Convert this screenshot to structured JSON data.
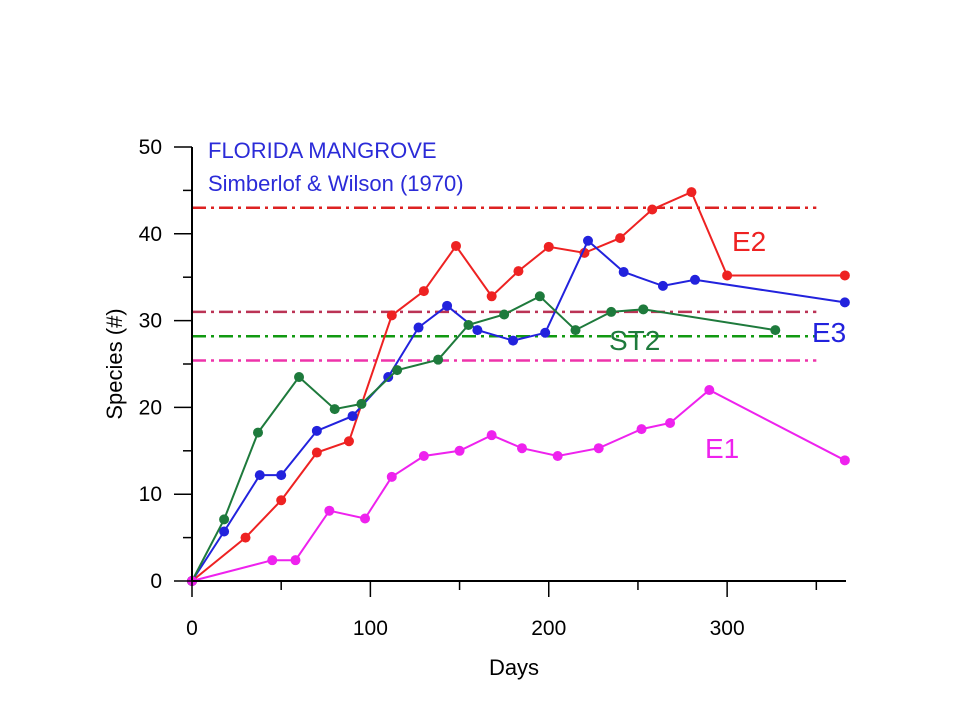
{
  "chart_data": {
    "type": "line",
    "annotation_lines": [
      "FLORIDA MANGROVE",
      "Simberlof & Wilson (1970)"
    ],
    "annotation_color": "#2b2bd8",
    "xlabel": "Days",
    "ylabel": "Species (#)",
    "xlim": [
      0,
      370
    ],
    "ylim": [
      0,
      50
    ],
    "x_ticks": [
      0,
      100,
      200,
      300
    ],
    "x_minor_ticks": [
      50,
      150,
      250,
      350
    ],
    "y_ticks": [
      0,
      10,
      20,
      30,
      40,
      50
    ],
    "y_minor_ticks": [
      5,
      15,
      25,
      35,
      45
    ],
    "grid": false,
    "series": [
      {
        "name": "E2",
        "color": "#ee2222",
        "x": [
          0,
          30,
          50,
          70,
          88,
          112,
          130,
          148,
          168,
          183,
          200,
          220,
          240,
          258,
          280,
          300,
          366
        ],
        "y": [
          0,
          5,
          9.3,
          14.8,
          16.1,
          30.6,
          33.4,
          38.6,
          32.8,
          35.7,
          38.5,
          37.8,
          39.5,
          42.8,
          44.8,
          35.2,
          35.2
        ]
      },
      {
        "name": "E3",
        "color": "#2222dd",
        "x": [
          0,
          18,
          38,
          50,
          70,
          90,
          110,
          127,
          143,
          160,
          180,
          198,
          222,
          242,
          264,
          282,
          366
        ],
        "y": [
          0,
          5.7,
          12.2,
          12.2,
          17.3,
          19,
          23.5,
          29.2,
          31.7,
          28.9,
          27.7,
          28.6,
          39.2,
          35.6,
          34,
          34.7,
          32.1
        ]
      },
      {
        "name": "ST2",
        "color": "#1e7a3c",
        "x": [
          0,
          18,
          37,
          60,
          80,
          95,
          115,
          138,
          155,
          175,
          195,
          215,
          235,
          253,
          327
        ],
        "y": [
          0,
          7.1,
          17.1,
          23.5,
          19.8,
          20.4,
          24.3,
          25.5,
          29.5,
          30.7,
          32.8,
          28.9,
          31,
          31.3,
          28.9
        ]
      },
      {
        "name": "E1",
        "color": "#ee22ee",
        "x": [
          0,
          45,
          58,
          77,
          97,
          112,
          130,
          150,
          168,
          185,
          205,
          228,
          252,
          268,
          290,
          366
        ],
        "y": [
          0,
          2.4,
          2.4,
          8.1,
          7.2,
          12,
          14.4,
          15,
          16.8,
          15.3,
          14.4,
          15.3,
          17.5,
          18.2,
          22,
          13.9
        ]
      }
    ],
    "reference_lines": [
      {
        "y": 43,
        "color": "#dd2222"
      },
      {
        "y": 31,
        "color": "#bb3355"
      },
      {
        "y": 28.2,
        "color": "#119911"
      },
      {
        "y": 25.4,
        "color": "#ee33aa"
      }
    ]
  }
}
